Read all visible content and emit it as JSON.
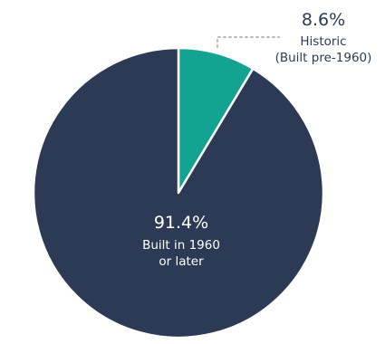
{
  "chart_data": {
    "type": "pie",
    "title": "",
    "slices": [
      {
        "value": 8.6,
        "value_label": "8.6%",
        "label_lines": [
          "Historic",
          "(Built pre-1960)"
        ],
        "color": "#12a391",
        "label_position": "outside-top-right"
      },
      {
        "value": 91.4,
        "value_label": "91.4%",
        "label_lines": [
          "Built in 1960",
          "or later"
        ],
        "color": "#2d3a55",
        "label_position": "inside"
      }
    ],
    "start_angle": "12 o'clock",
    "direction": "clockwise",
    "leader_line_color": "#b9b9b9"
  }
}
